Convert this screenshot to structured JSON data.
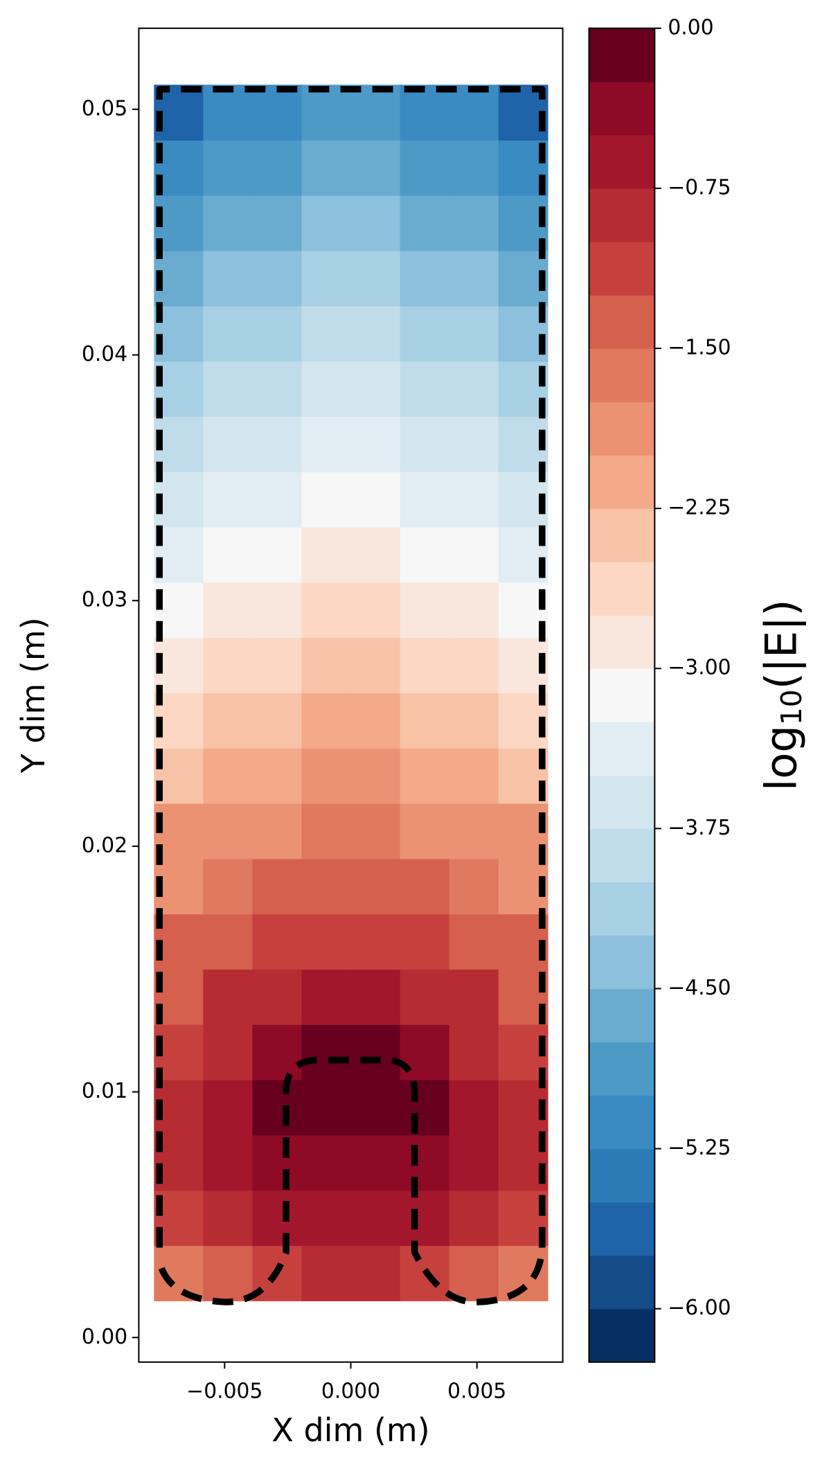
{
  "chart_data": {
    "type": "contour",
    "xlabel": "X dim (m)",
    "ylabel": "Y dim (m)",
    "colorbar_label": {
      "base": "log",
      "subscript": "10",
      "argument": "(|E|)"
    },
    "xlim": [
      -0.0084,
      0.0084
    ],
    "ylim": [
      -0.001,
      0.0533
    ],
    "xticks": [
      {
        "value": -0.005,
        "label": "−0.005"
      },
      {
        "value": 0,
        "label": "0.000"
      },
      0.005
    ],
    "yticks": [
      {
        "value": 0,
        "label": "0.00"
      },
      0.01,
      0.02,
      0.03,
      0.04,
      0.05
    ],
    "x_edges": [
      -0.0078,
      -0.00585,
      -0.0039,
      -0.00195,
      0,
      0.00195,
      0.0039,
      0.00585,
      0.0078
    ],
    "y_edges": [
      0.0015,
      0.00375,
      0.006,
      0.00825,
      0.0105,
      0.01275,
      0.015,
      0.01725,
      0.0195,
      0.02175,
      0.024,
      0.02625,
      0.0285,
      0.03075,
      0.033,
      0.03525,
      0.0375,
      0.03975,
      0.042,
      0.04425,
      0.0465,
      0.04875,
      0.051
    ],
    "z": [
      [
        -1.6,
        -1.4,
        -1.2,
        -1.0,
        -1.0,
        -1.2,
        -1.4,
        -1.6
      ],
      [
        -1.2,
        -0.9,
        -0.6,
        -0.6,
        -0.6,
        -0.6,
        -0.9,
        -1.2
      ],
      [
        -1.0,
        -0.7,
        -0.4,
        -0.3,
        -0.3,
        -0.4,
        -0.7,
        -1.0
      ],
      [
        -1.0,
        -0.6,
        -0.2,
        -0.1,
        -0.1,
        -0.2,
        -0.6,
        -1.0
      ],
      [
        -1.1,
        -0.8,
        -0.45,
        -0.2,
        -0.2,
        -0.45,
        -0.8,
        -1.1
      ],
      [
        -1.3,
        -1.0,
        -0.8,
        -0.65,
        -0.65,
        -0.8,
        -1.0,
        -1.3
      ],
      [
        -1.5,
        -1.3,
        -1.15,
        -1.05,
        -1.05,
        -1.15,
        -1.3,
        -1.5
      ],
      [
        -1.8,
        -1.6,
        -1.5,
        -1.45,
        -1.45,
        -1.5,
        -1.6,
        -1.8
      ],
      [
        -2.0,
        -1.9,
        -1.8,
        -1.75,
        -1.75,
        -1.8,
        -1.9,
        -2.0
      ],
      [
        -2.3,
        -2.15,
        -2.05,
        -2.0,
        -2.0,
        -2.05,
        -2.15,
        -2.3
      ],
      [
        -2.55,
        -2.4,
        -2.3,
        -2.25,
        -2.25,
        -2.3,
        -2.4,
        -2.55
      ],
      [
        -2.8,
        -2.65,
        -2.55,
        -2.5,
        -2.5,
        -2.55,
        -2.65,
        -2.8
      ],
      [
        -3.05,
        -2.9,
        -2.8,
        -2.75,
        -2.75,
        -2.8,
        -2.9,
        -3.05
      ],
      [
        -3.3,
        -3.15,
        -3.05,
        -3.0,
        -3.0,
        -3.05,
        -3.15,
        -3.3
      ],
      [
        -3.55,
        -3.4,
        -3.3,
        -3.25,
        -3.25,
        -3.3,
        -3.4,
        -3.55
      ],
      [
        -3.8,
        -3.65,
        -3.55,
        -3.5,
        -3.5,
        -3.55,
        -3.65,
        -3.8
      ],
      [
        -4.05,
        -3.9,
        -3.8,
        -3.75,
        -3.75,
        -3.8,
        -3.9,
        -4.05
      ],
      [
        -4.3,
        -4.15,
        -4.05,
        -4.0,
        -4.0,
        -4.05,
        -4.15,
        -4.3
      ],
      [
        -4.55,
        -4.4,
        -4.3,
        -4.25,
        -4.25,
        -4.3,
        -4.4,
        -4.55
      ],
      [
        -4.85,
        -4.65,
        -4.55,
        -4.5,
        -4.5,
        -4.55,
        -4.65,
        -4.85
      ],
      [
        -5.2,
        -4.95,
        -4.8,
        -4.75,
        -4.75,
        -4.8,
        -4.95,
        -5.2
      ],
      [
        -5.6,
        -5.2,
        -5.05,
        -5.0,
        -5.0,
        -5.05,
        -5.2,
        -5.6
      ]
    ],
    "levels": [
      -6.25,
      -6.0,
      -5.75,
      -5.5,
      -5.25,
      -5.0,
      -4.75,
      -4.5,
      -4.25,
      -4.0,
      -3.75,
      -3.5,
      -3.25,
      -3.0,
      -2.75,
      -2.5,
      -2.25,
      -2.0,
      -1.75,
      -1.5,
      -1.25,
      -1.0,
      -0.75,
      -0.5,
      -0.25,
      0
    ],
    "colors": [
      "#053061",
      "#134c87",
      "#1f63a8",
      "#2c7bb6",
      "#3a8bc2",
      "#4d9ac7",
      "#6aacd0",
      "#8cc0dd",
      "#a8d0e4",
      "#c0dcea",
      "#d3e6f0",
      "#e2edf3",
      "#f7f7f7",
      "#f9e6dc",
      "#fbd7c4",
      "#f8c2a6",
      "#f4a989",
      "#eb9273",
      "#e07a5f",
      "#d4604d",
      "#c6413e",
      "#b72b33",
      "#a3172c",
      "#8e0a27",
      "#67001f"
    ],
    "clim": [
      -6.25,
      0
    ],
    "cticks": [
      {
        "value": 0,
        "label": "0.00"
      },
      {
        "value": -0.75,
        "label": "−0.75"
      },
      {
        "value": -1.5,
        "label": "−1.50"
      },
      {
        "value": -2.25,
        "label": "−2.25"
      },
      {
        "value": -3.0,
        "label": "−3.00"
      },
      {
        "value": -3.75,
        "label": "−3.75"
      },
      {
        "value": -4.5,
        "label": "−4.50"
      },
      {
        "value": -5.25,
        "label": "−5.25"
      },
      {
        "value": -6.0,
        "label": "−6.00"
      }
    ]
  }
}
